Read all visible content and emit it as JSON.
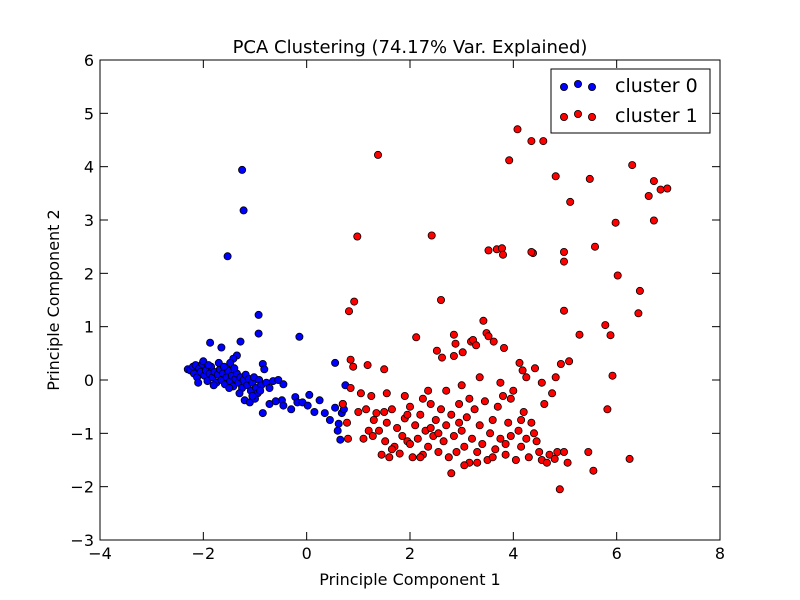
{
  "chart_data": {
    "type": "scatter",
    "title": "PCA Clustering (74.17% Var. Explained)",
    "xlabel": "Principle Component 1",
    "ylabel": "Principle Component 2",
    "xlim": [
      -4,
      8
    ],
    "ylim": [
      -3,
      6
    ],
    "xticks": [
      -4,
      -2,
      0,
      2,
      4,
      6,
      8
    ],
    "yticks": [
      -3,
      -2,
      -1,
      0,
      1,
      2,
      3,
      4,
      5,
      6
    ],
    "xtick_labels": [
      "−4",
      "−2",
      "0",
      "2",
      "4",
      "6",
      "8"
    ],
    "ytick_labels": [
      "−3",
      "−2",
      "−1",
      "0",
      "1",
      "2",
      "3",
      "4",
      "5",
      "6"
    ],
    "grid": false,
    "legend_position": "top-right",
    "series": [
      {
        "name": "cluster 0",
        "color": "#0000ff",
        "points": [
          [
            -1.25,
            3.94
          ],
          [
            -1.22,
            3.18
          ],
          [
            -1.53,
            2.32
          ],
          [
            -0.93,
            1.22
          ],
          [
            -0.93,
            0.87
          ],
          [
            -0.14,
            0.81
          ],
          [
            -1.28,
            0.72
          ],
          [
            -1.87,
            0.7
          ],
          [
            -1.65,
            0.61
          ],
          [
            -1.35,
            0.46
          ],
          [
            -1.42,
            0.4
          ],
          [
            -1.48,
            0.32
          ],
          [
            -2.3,
            0.2
          ],
          [
            -2.25,
            0.18
          ],
          [
            -2.2,
            0.25
          ],
          [
            -2.18,
            0.12
          ],
          [
            -2.15,
            0.28
          ],
          [
            -2.12,
            0.05
          ],
          [
            -2.08,
            0.22
          ],
          [
            -2.05,
            0.15
          ],
          [
            -2.02,
            0.3
          ],
          [
            -1.98,
            0.08
          ],
          [
            -1.95,
            0.18
          ],
          [
            -1.92,
            -0.02
          ],
          [
            -1.88,
            0.12
          ],
          [
            -1.85,
            0.25
          ],
          [
            -1.82,
            0.05
          ],
          [
            -1.78,
            0.15
          ],
          [
            -1.75,
            -0.05
          ],
          [
            -1.72,
            0.1
          ],
          [
            -1.68,
            0.2
          ],
          [
            -1.65,
            0.0
          ],
          [
            -1.62,
            0.12
          ],
          [
            -1.58,
            -0.08
          ],
          [
            -1.55,
            0.05
          ],
          [
            -1.52,
            0.18
          ],
          [
            -1.48,
            -0.02
          ],
          [
            -1.45,
            0.08
          ],
          [
            -1.42,
            -0.12
          ],
          [
            -1.38,
            0.02
          ],
          [
            -1.35,
            0.12
          ],
          [
            -1.32,
            -0.05
          ],
          [
            -1.28,
            0.05
          ],
          [
            -1.25,
            -0.15
          ],
          [
            -1.22,
            0.0
          ],
          [
            -1.18,
            0.1
          ],
          [
            -1.15,
            -0.1
          ],
          [
            -1.12,
            0.02
          ],
          [
            -1.08,
            -0.2
          ],
          [
            -1.05,
            -0.05
          ],
          [
            -1.02,
            0.05
          ],
          [
            -0.98,
            -0.15
          ],
          [
            -0.95,
            -0.25
          ],
          [
            -0.92,
            0.0
          ],
          [
            -0.88,
            -0.1
          ],
          [
            -0.85,
            0.3
          ],
          [
            -0.82,
            0.2
          ],
          [
            -0.78,
            -0.05
          ],
          [
            -0.72,
            -0.15
          ],
          [
            -0.65,
            -0.02
          ],
          [
            -0.55,
            0.0
          ],
          [
            -0.45,
            -0.08
          ],
          [
            -2.0,
            0.35
          ],
          [
            -1.9,
            0.28
          ],
          [
            -1.7,
            0.32
          ],
          [
            -1.6,
            0.25
          ],
          [
            -1.4,
            0.22
          ],
          [
            -1.2,
            -0.38
          ],
          [
            -1.1,
            -0.42
          ],
          [
            -1.0,
            -0.35
          ],
          [
            -0.85,
            -0.62
          ],
          [
            -0.72,
            -0.45
          ],
          [
            -0.48,
            -0.38
          ],
          [
            -0.45,
            -0.48
          ],
          [
            -0.22,
            -0.32
          ],
          [
            -0.18,
            -0.42
          ],
          [
            -0.08,
            -0.42
          ],
          [
            0.02,
            -0.48
          ],
          [
            0.05,
            -0.28
          ],
          [
            0.25,
            -0.38
          ],
          [
            0.35,
            -0.62
          ],
          [
            0.45,
            -0.75
          ],
          [
            0.55,
            -0.52
          ],
          [
            0.6,
            -0.95
          ],
          [
            0.62,
            -0.82
          ],
          [
            0.65,
            -1.12
          ],
          [
            0.68,
            -0.62
          ],
          [
            0.55,
            0.32
          ],
          [
            0.7,
            -0.45
          ],
          [
            0.72,
            -0.55
          ],
          [
            0.75,
            -0.1
          ],
          [
            -1.05,
            -0.3
          ],
          [
            -0.9,
            -0.2
          ],
          [
            -1.3,
            -0.25
          ],
          [
            -1.5,
            -0.15
          ],
          [
            -2.1,
            -0.05
          ],
          [
            -1.8,
            -0.1
          ],
          [
            -0.6,
            -0.4
          ],
          [
            -0.3,
            -0.55
          ],
          [
            0.15,
            -0.6
          ]
        ]
      },
      {
        "name": "cluster 1",
        "color": "#ff0000",
        "points": [
          [
            1.38,
            4.22
          ],
          [
            4.08,
            4.7
          ],
          [
            4.35,
            4.48
          ],
          [
            4.58,
            4.48
          ],
          [
            3.92,
            4.12
          ],
          [
            6.3,
            4.03
          ],
          [
            4.82,
            3.82
          ],
          [
            5.48,
            3.77
          ],
          [
            6.72,
            3.73
          ],
          [
            6.85,
            3.57
          ],
          [
            6.98,
            3.59
          ],
          [
            6.62,
            3.45
          ],
          [
            5.1,
            3.34
          ],
          [
            6.72,
            2.99
          ],
          [
            5.98,
            2.95
          ],
          [
            0.98,
            2.69
          ],
          [
            2.42,
            2.71
          ],
          [
            5.58,
            2.5
          ],
          [
            3.52,
            2.43
          ],
          [
            3.68,
            2.45
          ],
          [
            3.78,
            2.47
          ],
          [
            3.8,
            2.35
          ],
          [
            4.38,
            2.38
          ],
          [
            4.35,
            2.4
          ],
          [
            4.98,
            2.4
          ],
          [
            4.98,
            2.22
          ],
          [
            6.02,
            1.96
          ],
          [
            6.45,
            1.67
          ],
          [
            2.6,
            1.5
          ],
          [
            0.92,
            1.47
          ],
          [
            6.42,
            1.25
          ],
          [
            0.82,
            1.29
          ],
          [
            4.98,
            1.3
          ],
          [
            5.78,
            1.03
          ],
          [
            3.42,
            1.11
          ],
          [
            5.88,
            0.84
          ],
          [
            5.28,
            0.85
          ],
          [
            2.12,
            0.8
          ],
          [
            0.85,
            0.38
          ],
          [
            0.9,
            0.25
          ],
          [
            1.18,
            0.28
          ],
          [
            1.5,
            0.2
          ],
          [
            2.85,
            0.85
          ],
          [
            2.88,
            0.68
          ],
          [
            3.02,
            0.52
          ],
          [
            3.18,
            0.72
          ],
          [
            3.48,
            0.88
          ],
          [
            3.52,
            0.82
          ],
          [
            2.52,
            0.55
          ],
          [
            2.62,
            0.42
          ],
          [
            2.85,
            0.45
          ],
          [
            3.22,
            0.75
          ],
          [
            3.28,
            0.65
          ],
          [
            3.62,
            0.72
          ],
          [
            3.82,
            0.6
          ],
          [
            4.12,
            0.32
          ],
          [
            4.18,
            0.18
          ],
          [
            4.42,
            0.22
          ],
          [
            4.92,
            0.3
          ],
          [
            5.08,
            0.35
          ],
          [
            5.92,
            0.08
          ],
          [
            4.82,
            0.05
          ],
          [
            0.7,
            -0.45
          ],
          [
            0.78,
            -0.8
          ],
          [
            0.8,
            -1.1
          ],
          [
            0.85,
            -0.15
          ],
          [
            1.0,
            -0.6
          ],
          [
            1.15,
            -0.55
          ],
          [
            1.2,
            -0.95
          ],
          [
            1.28,
            -1.05
          ],
          [
            1.35,
            -0.62
          ],
          [
            1.4,
            -0.95
          ],
          [
            1.45,
            -1.4
          ],
          [
            1.52,
            -1.15
          ],
          [
            1.55,
            -0.8
          ],
          [
            1.6,
            -1.45
          ],
          [
            1.65,
            -0.55
          ],
          [
            1.7,
            -1.25
          ],
          [
            1.75,
            -0.9
          ],
          [
            1.8,
            -1.38
          ],
          [
            1.85,
            -1.05
          ],
          [
            1.9,
            -0.72
          ],
          [
            1.95,
            -1.15
          ],
          [
            2.0,
            -0.5
          ],
          [
            2.05,
            -1.45
          ],
          [
            2.1,
            -0.85
          ],
          [
            2.15,
            -1.1
          ],
          [
            2.2,
            -0.65
          ],
          [
            2.25,
            -1.4
          ],
          [
            2.3,
            -0.95
          ],
          [
            2.35,
            -1.25
          ],
          [
            2.4,
            -0.45
          ],
          [
            2.45,
            -1.05
          ],
          [
            2.5,
            -0.75
          ],
          [
            2.55,
            -1.35
          ],
          [
            2.6,
            -0.55
          ],
          [
            2.65,
            -1.15
          ],
          [
            2.7,
            -0.85
          ],
          [
            2.75,
            -1.45
          ],
          [
            2.8,
            -0.65
          ],
          [
            2.85,
            -1.05
          ],
          [
            2.9,
            -1.35
          ],
          [
            2.95,
            -0.45
          ],
          [
            3.0,
            -0.95
          ],
          [
            3.05,
            -1.25
          ],
          [
            3.1,
            -0.7
          ],
          [
            3.15,
            -1.55
          ],
          [
            3.2,
            -1.1
          ],
          [
            3.25,
            -0.55
          ],
          [
            3.3,
            -1.35
          ],
          [
            3.35,
            -0.85
          ],
          [
            3.4,
            -1.2
          ],
          [
            3.45,
            -0.4
          ],
          [
            3.5,
            -1.5
          ],
          [
            3.55,
            -1.0
          ],
          [
            3.6,
            -0.75
          ],
          [
            3.65,
            -1.3
          ],
          [
            3.7,
            -0.5
          ],
          [
            3.75,
            -1.1
          ],
          [
            3.8,
            -0.3
          ],
          [
            3.85,
            -1.4
          ],
          [
            3.9,
            -0.8
          ],
          [
            3.95,
            -1.05
          ],
          [
            4.0,
            -0.2
          ],
          [
            4.05,
            -1.5
          ],
          [
            4.1,
            -0.95
          ],
          [
            4.15,
            -1.25
          ],
          [
            4.2,
            -0.6
          ],
          [
            4.25,
            -1.1
          ],
          [
            4.3,
            -1.45
          ],
          [
            4.35,
            -0.8
          ],
          [
            4.4,
            -1.0
          ],
          [
            4.45,
            -1.15
          ],
          [
            4.5,
            -1.35
          ],
          [
            4.55,
            -1.5
          ],
          [
            4.6,
            -0.45
          ],
          [
            4.65,
            -1.55
          ],
          [
            4.7,
            -1.4
          ],
          [
            4.8,
            -1.48
          ],
          [
            4.85,
            -1.35
          ],
          [
            4.9,
            -2.05
          ],
          [
            4.98,
            -1.35
          ],
          [
            5.05,
            -1.55
          ],
          [
            5.45,
            -1.35
          ],
          [
            5.55,
            -1.7
          ],
          [
            5.82,
            -0.55
          ],
          [
            6.25,
            -1.48
          ],
          [
            2.8,
            -1.75
          ],
          [
            3.05,
            -1.6
          ],
          [
            1.25,
            -0.3
          ],
          [
            1.55,
            -0.25
          ],
          [
            2.25,
            -0.35
          ],
          [
            2.7,
            -0.2
          ],
          [
            3.0,
            -0.1
          ],
          [
            3.35,
            0.05
          ],
          [
            3.75,
            -0.05
          ],
          [
            4.25,
            0.05
          ],
          [
            4.75,
            -0.25
          ],
          [
            1.05,
            -0.25
          ],
          [
            1.3,
            -0.75
          ],
          [
            1.9,
            -0.3
          ],
          [
            2.35,
            -0.2
          ],
          [
            3.15,
            -0.35
          ],
          [
            3.95,
            -0.35
          ],
          [
            4.55,
            -0.05
          ],
          [
            2.0,
            -1.2
          ],
          [
            2.55,
            -1.0
          ],
          [
            3.3,
            -1.55
          ],
          [
            1.65,
            -1.3
          ],
          [
            2.2,
            -1.45
          ],
          [
            3.85,
            -1.2
          ],
          [
            4.15,
            -0.75
          ],
          [
            2.95,
            -0.8
          ],
          [
            1.5,
            -0.6
          ],
          [
            2.4,
            -0.9
          ],
          [
            3.6,
            -1.45
          ],
          [
            1.1,
            -1.1
          ],
          [
            1.95,
            -0.65
          ]
        ]
      }
    ]
  }
}
